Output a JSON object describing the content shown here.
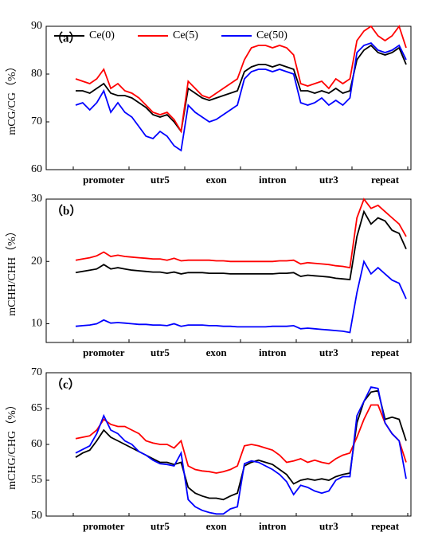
{
  "chart_data": [
    {
      "type": "line",
      "panel": "（a）",
      "y_label": "mCG/CG（%）",
      "legend": "upper left",
      "categories": [
        null,
        null,
        null,
        null,
        "promoter",
        null,
        null,
        null,
        null,
        null,
        null,
        null,
        "utr5",
        null,
        null,
        null,
        null,
        null,
        null,
        null,
        "exon",
        null,
        null,
        null,
        null,
        null,
        null,
        null,
        "intron",
        null,
        null,
        null,
        null,
        null,
        null,
        null,
        "utr3",
        null,
        null,
        null,
        null,
        null,
        null,
        null,
        "repeat",
        null,
        null,
        null
      ],
      "ylim": [
        60,
        90
      ],
      "yticks": [
        60,
        70,
        80,
        90
      ],
      "series": [
        {
          "name": "Ce(0)",
          "color": "#000000",
          "values": [
            76.5,
            76.5,
            76,
            77,
            78,
            76,
            75.5,
            75.5,
            75,
            74,
            73,
            71.5,
            71,
            71.5,
            70,
            68,
            77,
            76,
            75,
            74.5,
            75,
            75.5,
            76,
            76.5,
            80.5,
            81.5,
            82,
            82,
            81.5,
            82,
            81.5,
            81,
            76.5,
            76.5,
            76,
            76.5,
            76,
            77,
            76,
            76.5,
            83,
            85,
            86,
            84.5,
            84,
            84.5,
            85.5,
            82
          ]
        },
        {
          "name": "Ce(5)",
          "color": "#ff0000",
          "values": [
            79,
            78.5,
            78,
            79,
            81,
            77,
            78,
            76.5,
            76,
            75,
            73.5,
            72,
            71.5,
            72,
            70.5,
            68,
            78.5,
            77,
            75.5,
            75,
            76,
            77,
            78,
            79,
            83,
            85.5,
            86,
            86,
            85.5,
            86,
            85.5,
            84,
            78,
            77.5,
            78,
            78.5,
            77,
            79,
            78,
            79,
            87,
            89,
            90,
            88,
            87,
            88,
            90,
            85.5
          ]
        },
        {
          "name": "Ce(50)",
          "color": "#0000ff",
          "values": [
            73.5,
            74,
            72.5,
            74,
            76.5,
            72,
            74,
            72,
            71,
            69,
            67,
            66.5,
            68,
            67,
            65,
            64,
            73.5,
            72,
            71,
            70,
            70.5,
            71.5,
            72.5,
            73.5,
            79,
            80.5,
            81,
            81,
            80.5,
            81,
            80.5,
            80,
            74,
            73.5,
            74,
            75,
            73.5,
            74.5,
            73.5,
            75,
            84.5,
            86,
            86.5,
            85,
            84.5,
            85,
            86,
            83
          ]
        }
      ]
    },
    {
      "type": "line",
      "panel": "（b）",
      "y_label": "mCHH/CHH（%）",
      "categories": [
        null,
        null,
        null,
        null,
        "promoter",
        null,
        null,
        null,
        null,
        null,
        null,
        null,
        "utr5",
        null,
        null,
        null,
        null,
        null,
        null,
        null,
        "exon",
        null,
        null,
        null,
        null,
        null,
        null,
        null,
        "intron",
        null,
        null,
        null,
        null,
        null,
        null,
        null,
        "utr3",
        null,
        null,
        null,
        null,
        null,
        null,
        null,
        "repeat",
        null,
        null,
        null
      ],
      "ylim": [
        7,
        30
      ],
      "yticks": [
        10,
        20,
        30
      ],
      "series": [
        {
          "color": "#000000",
          "values": [
            18.2,
            18.4,
            18.6,
            18.8,
            19.5,
            18.8,
            19,
            18.8,
            18.6,
            18.5,
            18.4,
            18.3,
            18.3,
            18.1,
            18.3,
            18.0,
            18.2,
            18.2,
            18.2,
            18.1,
            18.1,
            18.1,
            18.0,
            18.0,
            18.0,
            18.0,
            18.0,
            18.0,
            18.0,
            18.1,
            18.1,
            18.2,
            17.6,
            17.8,
            17.7,
            17.6,
            17.5,
            17.3,
            17.2,
            17.1,
            24,
            28,
            26,
            27,
            26.5,
            25,
            24.5,
            22
          ]
        },
        {
          "color": "#ff0000",
          "values": [
            20.2,
            20.4,
            20.6,
            20.9,
            21.5,
            20.8,
            21,
            20.8,
            20.7,
            20.6,
            20.5,
            20.4,
            20.4,
            20.2,
            20.5,
            20.1,
            20.2,
            20.2,
            20.2,
            20.2,
            20.1,
            20.1,
            20.0,
            20.0,
            20.0,
            20.0,
            20.0,
            20.0,
            20.0,
            20.1,
            20.1,
            20.2,
            19.6,
            19.8,
            19.7,
            19.6,
            19.5,
            19.3,
            19.2,
            19.0,
            27,
            30,
            28.5,
            29,
            28,
            27,
            26,
            24
          ]
        },
        {
          "color": "#0000ff",
          "values": [
            9.6,
            9.7,
            9.8,
            10.0,
            10.6,
            10.1,
            10.2,
            10.1,
            10.0,
            9.9,
            9.9,
            9.8,
            9.8,
            9.7,
            10.0,
            9.6,
            9.8,
            9.8,
            9.8,
            9.7,
            9.7,
            9.6,
            9.6,
            9.5,
            9.5,
            9.5,
            9.5,
            9.5,
            9.6,
            9.6,
            9.6,
            9.7,
            9.2,
            9.3,
            9.2,
            9.1,
            9.0,
            8.9,
            8.8,
            8.6,
            15,
            20,
            18,
            19,
            18,
            17,
            16.5,
            14
          ]
        }
      ]
    },
    {
      "type": "line",
      "panel": "（c）",
      "y_label": "mCHG/CHG（%）",
      "categories": [
        null,
        null,
        null,
        null,
        "promoter",
        null,
        null,
        null,
        null,
        null,
        null,
        null,
        "utr5",
        null,
        null,
        null,
        null,
        null,
        null,
        null,
        "exon",
        null,
        null,
        null,
        null,
        null,
        null,
        null,
        "intron",
        null,
        null,
        null,
        null,
        null,
        null,
        null,
        "utr3",
        null,
        null,
        null,
        null,
        null,
        null,
        null,
        "repeat",
        null,
        null,
        null
      ],
      "ylim": [
        50,
        70
      ],
      "yticks": [
        50,
        55,
        60,
        65,
        70
      ],
      "series": [
        {
          "color": "#000000",
          "values": [
            58.2,
            58.8,
            59.2,
            60.5,
            62,
            61,
            60.5,
            60,
            59.5,
            59,
            58.5,
            58,
            57.5,
            57.5,
            57.2,
            57.5,
            54,
            53.2,
            52.8,
            52.5,
            52.5,
            52.3,
            52.8,
            53.2,
            57,
            57.5,
            57.8,
            57.5,
            57.2,
            56.5,
            55.8,
            54.5,
            55,
            55.2,
            55,
            55.2,
            55,
            55.5,
            55.8,
            56,
            63,
            66,
            67.3,
            67.5,
            63.5,
            63.8,
            63.5,
            60.5
          ]
        },
        {
          "color": "#ff0000",
          "values": [
            60.8,
            61,
            61.2,
            62,
            63.5,
            62.8,
            62.5,
            62.5,
            62,
            61.5,
            60.5,
            60.2,
            60,
            60,
            59.5,
            60.5,
            57,
            56.5,
            56.3,
            56.2,
            56,
            56.2,
            56.5,
            57,
            59.8,
            60,
            59.8,
            59.5,
            59.2,
            58.5,
            57.5,
            57.7,
            58,
            57.5,
            57.8,
            57.5,
            57.3,
            58,
            58.5,
            58.8,
            61,
            63.5,
            65.5,
            65.5,
            63,
            61.5,
            60.5,
            57.5
          ]
        },
        {
          "color": "#0000ff",
          "values": [
            58.8,
            59.3,
            59.8,
            61.5,
            64,
            62,
            61.5,
            60.5,
            60,
            59,
            58.5,
            57.8,
            57.3,
            57.2,
            57,
            58.8,
            52.3,
            51.3,
            50.8,
            50.5,
            50.3,
            50.3,
            51,
            51.3,
            57.3,
            57.7,
            57.5,
            57,
            56.5,
            55.8,
            54.8,
            53,
            54.3,
            54,
            53.5,
            53.2,
            53.5,
            55,
            55.5,
            55.5,
            64,
            66,
            68,
            67.8,
            63,
            61.5,
            60.5,
            55.2
          ]
        }
      ]
    }
  ]
}
